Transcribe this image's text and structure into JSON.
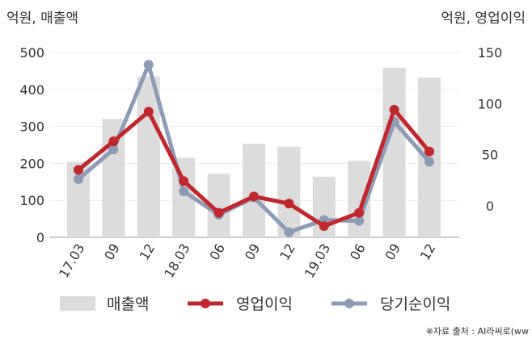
{
  "chart_data": {
    "type": "bar+line",
    "left_axis_label": "억원, 매출액",
    "right_axis_label": "억원, 영업이익",
    "categories": [
      "17.03",
      "09",
      "12",
      "18.03",
      "06",
      "09",
      "12",
      "19.03",
      "06",
      "09",
      "12"
    ],
    "left_ylim": [
      0,
      500
    ],
    "left_ticks": [
      0,
      100,
      200,
      300,
      400,
      500
    ],
    "right_ylim": [
      -31,
      150
    ],
    "right_ticks": [
      0,
      50,
      100,
      150
    ],
    "grid": true,
    "legend_position": "bottom",
    "series": [
      {
        "name": "매출액",
        "type": "bar",
        "axis": "left",
        "color": "#dcdcdc",
        "values": [
          204,
          320,
          435,
          215,
          172,
          253,
          245,
          164,
          207,
          459,
          432
        ]
      },
      {
        "name": "영업이익",
        "type": "line",
        "axis": "right",
        "color": "#c0282e",
        "values": [
          35,
          63,
          92,
          24,
          -7,
          9,
          2,
          -20,
          -7,
          94,
          53
        ]
      },
      {
        "name": "당기순이익",
        "type": "line",
        "axis": "right",
        "color": "#8e9bb5",
        "values": [
          26,
          55,
          138,
          14,
          -9,
          8,
          -26,
          -14,
          -15,
          82,
          43
        ]
      }
    ]
  },
  "source": "※자료 출처 : AI라씨로(ww"
}
